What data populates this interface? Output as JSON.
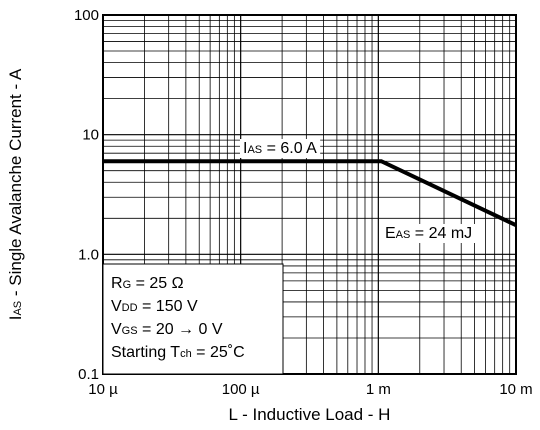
{
  "chart_data": {
    "type": "line",
    "x_scale": "log",
    "y_scale": "log",
    "xlim": [
      1e-05,
      0.01
    ],
    "ylim": [
      0.1,
      100
    ],
    "grid": true,
    "xlabel": "L - Inductive Load - H",
    "ylabel": {
      "symbol": "I",
      "sub": "AS",
      "text": " - Single Avalanche Current - A"
    },
    "x_tick_values": [
      1e-05,
      0.0001,
      0.001,
      0.01
    ],
    "x_tick_labels": [
      "10 µ",
      "100 µ",
      "1 m",
      "10 m"
    ],
    "y_tick_values": [
      0.1,
      1,
      10,
      100
    ],
    "y_tick_labels": [
      "0.1",
      "1.0",
      "10",
      "100"
    ],
    "series": [
      {
        "points": [
          {
            "x": 1e-05,
            "y": 6.0
          },
          {
            "x": 0.00105,
            "y": 6.0
          },
          {
            "x": 0.01,
            "y": 1.75
          }
        ]
      }
    ],
    "annotations": {
      "ias": {
        "symbol": "I",
        "sub": "AS",
        "text": " = 6.0 A"
      },
      "eas": {
        "symbol": "E",
        "sub": "AS",
        "text": " = 24 mJ"
      }
    },
    "conditions": [
      {
        "symbol": "R",
        "sub": "G",
        "text": " = 25 Ω"
      },
      {
        "symbol": "V",
        "sub": "DD",
        "text": " = 150 V"
      },
      {
        "symbol": "V",
        "sub": "GS",
        "text": " = 20 → 0 V"
      },
      {
        "symbol": "Starting T",
        "sub": "ch",
        "text": " = 25˚C"
      }
    ]
  }
}
